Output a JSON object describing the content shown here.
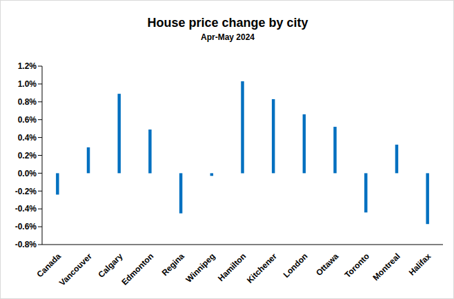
{
  "chart_data": {
    "type": "bar",
    "title": "House price change by city",
    "subtitle": "Apr-May 2024",
    "categories": [
      "Canada",
      "Vancouver",
      "Calgary",
      "Edmonton",
      "Regina",
      "Winnipeg",
      "Hamilton",
      "Kitchener",
      "London",
      "Ottawa",
      "Toronto",
      "Montreal",
      "Halifax"
    ],
    "values": [
      -0.24,
      0.29,
      0.89,
      0.49,
      -0.45,
      -0.03,
      1.03,
      0.83,
      0.66,
      0.52,
      -0.44,
      0.32,
      -0.57
    ],
    "color": "#0070c0",
    "ylim": [
      -0.8,
      1.2
    ],
    "yticks": [
      {
        "value": -0.8,
        "label": "-0.8%"
      },
      {
        "value": -0.6,
        "label": "-0.6%"
      },
      {
        "value": -0.4,
        "label": "-0.4%"
      },
      {
        "value": -0.2,
        "label": "-0.2%"
      },
      {
        "value": 0,
        "label": "0.0%"
      },
      {
        "value": 0.2,
        "label": "0.2%"
      },
      {
        "value": 0.4,
        "label": "0.4%"
      },
      {
        "value": 0.6,
        "label": "0.6%"
      },
      {
        "value": 0.8,
        "label": "0.8%"
      },
      {
        "value": 1.0,
        "label": "1.0%"
      },
      {
        "value": 1.2,
        "label": "1.2%"
      }
    ],
    "grid": false
  }
}
